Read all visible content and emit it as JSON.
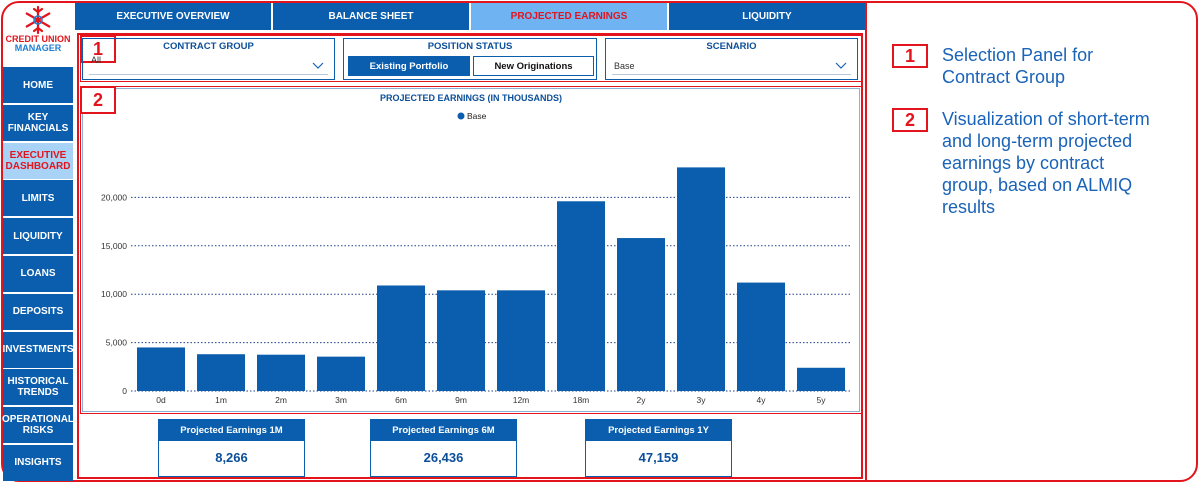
{
  "logo": {
    "line1": "CREDIT UNION",
    "line2": "MANAGER"
  },
  "sidebar": {
    "items": [
      {
        "label": "HOME",
        "active": false
      },
      {
        "label": "KEY\nFINANCIALS",
        "active": false
      },
      {
        "label": "EXECUTIVE\nDASHBOARD",
        "active": true
      },
      {
        "label": "LIMITS",
        "active": false
      },
      {
        "label": "LIQUIDITY",
        "active": false
      },
      {
        "label": "LOANS",
        "active": false
      },
      {
        "label": "DEPOSITS",
        "active": false
      },
      {
        "label": "INVESTMENTS",
        "active": false
      },
      {
        "label": "HISTORICAL\nTRENDS",
        "active": false
      },
      {
        "label": "OPERATIONAL\nRISKS",
        "active": false
      },
      {
        "label": "INSIGHTS",
        "active": false
      }
    ]
  },
  "tabs": [
    {
      "label": "EXECUTIVE OVERVIEW",
      "active": false
    },
    {
      "label": "BALANCE SHEET",
      "active": false
    },
    {
      "label": "PROJECTED EARNINGS",
      "active": true
    },
    {
      "label": "LIQUIDITY",
      "active": false
    }
  ],
  "filters": {
    "contract_group": {
      "title": "CONTRACT GROUP",
      "value": "All"
    },
    "position_status": {
      "title": "POSITION STATUS",
      "options": [
        "Existing Portfolio",
        "New Originations"
      ],
      "selected": "Existing Portfolio"
    },
    "scenario": {
      "title": "SCENARIO",
      "value": "Base"
    }
  },
  "markers": {
    "one": "1",
    "two": "2"
  },
  "colors": {
    "brand_blue": "#0b5ead",
    "accent_red": "#e3141c",
    "active_tab": "#6fb3f3"
  },
  "chart_data": {
    "type": "bar",
    "title": "PROJECTED EARNINGS (IN THOUSANDS)",
    "series": [
      {
        "name": "Base",
        "values": [
          4500,
          3800,
          3750,
          3550,
          10900,
          10400,
          10400,
          19600,
          15800,
          23100,
          11200,
          2400
        ]
      }
    ],
    "categories": [
      "0d",
      "1m",
      "2m",
      "3m",
      "6m",
      "9m",
      "12m",
      "18m",
      "2y",
      "3y",
      "4y",
      "5y"
    ],
    "yticks": [
      0,
      5000,
      10000,
      15000,
      20000
    ],
    "ytick_labels": [
      "0",
      "5,000",
      "10,000",
      "15,000",
      "20,000"
    ],
    "ylim": [
      0,
      25000
    ],
    "grid": true,
    "legend": "top-center",
    "color": "#0b5ead"
  },
  "kpis": [
    {
      "title": "Projected Earnings 1M",
      "value": "8,266"
    },
    {
      "title": "Projected Earnings 6M",
      "value": "26,436"
    },
    {
      "title": "Projected Earnings 1Y",
      "value": "47,159"
    }
  ],
  "legend_notes": [
    {
      "num": "1",
      "text": "Selection Panel for Contract Group"
    },
    {
      "num": "2",
      "text": "Visualization of short-term and long-term projected earnings by contract group, based on ALMIQ results"
    }
  ]
}
